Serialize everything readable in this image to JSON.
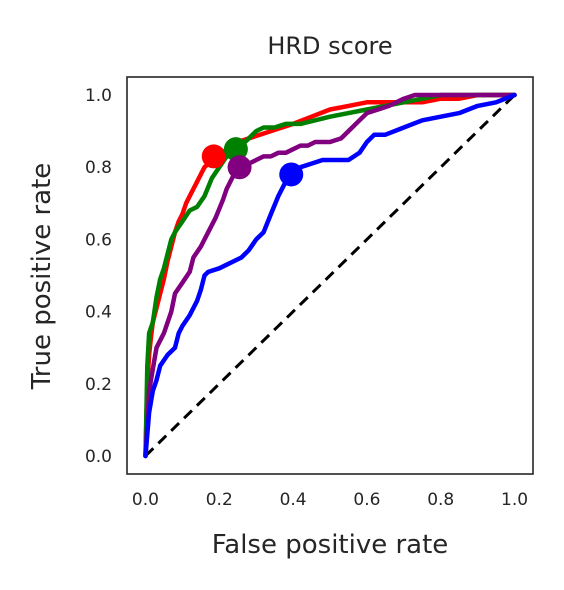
{
  "chart_data": {
    "type": "line",
    "title": "HRD score",
    "xlabel": "False positive rate",
    "ylabel": "True positive rate",
    "xlim": [
      -0.05,
      1.05
    ],
    "ylim": [
      -0.05,
      1.05
    ],
    "xticks": [
      "0.0",
      "0.2",
      "0.4",
      "0.6",
      "0.8",
      "1.0"
    ],
    "yticks": [
      "0.0",
      "0.2",
      "0.4",
      "0.6",
      "0.8",
      "1.0"
    ],
    "grid": false,
    "legend": false,
    "diagonal": {
      "x": [
        0,
        1
      ],
      "y": [
        0,
        1
      ],
      "color": "#000000",
      "style": "dashed"
    },
    "series": [
      {
        "color": "#ff0000",
        "x": [
          0,
          0.005,
          0.01,
          0.015,
          0.02,
          0.03,
          0.04,
          0.05,
          0.06,
          0.07,
          0.08,
          0.09,
          0.1,
          0.11,
          0.12,
          0.13,
          0.14,
          0.15,
          0.16,
          0.17,
          0.18,
          0.19,
          0.21,
          0.23,
          0.25,
          0.28,
          0.31,
          0.34,
          0.37,
          0.4,
          0.45,
          0.5,
          0.55,
          0.6,
          0.65,
          0.7,
          0.75,
          0.8,
          0.85,
          0.9,
          0.95,
          1.0
        ],
        "y": [
          0,
          0.2,
          0.28,
          0.33,
          0.37,
          0.41,
          0.45,
          0.49,
          0.54,
          0.58,
          0.62,
          0.65,
          0.67,
          0.7,
          0.72,
          0.74,
          0.76,
          0.78,
          0.8,
          0.81,
          0.82,
          0.83,
          0.84,
          0.86,
          0.87,
          0.88,
          0.89,
          0.9,
          0.91,
          0.92,
          0.94,
          0.96,
          0.97,
          0.98,
          0.98,
          0.98,
          0.98,
          0.99,
          0.99,
          1.0,
          1.0,
          1.0
        ]
      },
      {
        "color": "#008000",
        "x": [
          0,
          0.005,
          0.01,
          0.02,
          0.03,
          0.04,
          0.05,
          0.06,
          0.07,
          0.08,
          0.1,
          0.12,
          0.14,
          0.16,
          0.18,
          0.2,
          0.22,
          0.24,
          0.26,
          0.28,
          0.3,
          0.32,
          0.35,
          0.38,
          0.42,
          0.46,
          0.5,
          0.55,
          0.6,
          0.65,
          0.7,
          0.75,
          0.8,
          0.85,
          0.9,
          0.95,
          1.0
        ],
        "y": [
          0,
          0.25,
          0.34,
          0.37,
          0.44,
          0.49,
          0.52,
          0.56,
          0.6,
          0.62,
          0.65,
          0.68,
          0.69,
          0.72,
          0.77,
          0.8,
          0.83,
          0.85,
          0.86,
          0.88,
          0.9,
          0.91,
          0.91,
          0.92,
          0.92,
          0.93,
          0.94,
          0.95,
          0.96,
          0.97,
          0.98,
          0.99,
          1.0,
          1.0,
          1.0,
          1.0,
          1.0
        ]
      },
      {
        "color": "#800080",
        "x": [
          0,
          0.01,
          0.02,
          0.03,
          0.05,
          0.07,
          0.08,
          0.1,
          0.12,
          0.13,
          0.15,
          0.17,
          0.19,
          0.21,
          0.22,
          0.24,
          0.26,
          0.28,
          0.3,
          0.32,
          0.34,
          0.36,
          0.38,
          0.4,
          0.42,
          0.44,
          0.46,
          0.5,
          0.53,
          0.55,
          0.58,
          0.6,
          0.63,
          0.66,
          0.7,
          0.73,
          0.76,
          0.8,
          0.85,
          0.9,
          0.95,
          1.0
        ],
        "y": [
          0,
          0.18,
          0.24,
          0.3,
          0.34,
          0.4,
          0.45,
          0.48,
          0.51,
          0.55,
          0.58,
          0.62,
          0.66,
          0.71,
          0.74,
          0.78,
          0.8,
          0.81,
          0.82,
          0.83,
          0.83,
          0.84,
          0.84,
          0.85,
          0.86,
          0.86,
          0.87,
          0.87,
          0.88,
          0.9,
          0.93,
          0.95,
          0.96,
          0.97,
          0.99,
          1.0,
          1.0,
          1.0,
          1.0,
          1.0,
          1.0,
          1.0
        ]
      },
      {
        "color": "#0000ff",
        "x": [
          0,
          0.01,
          0.02,
          0.03,
          0.04,
          0.06,
          0.08,
          0.09,
          0.1,
          0.12,
          0.13,
          0.14,
          0.15,
          0.16,
          0.17,
          0.2,
          0.22,
          0.24,
          0.26,
          0.28,
          0.3,
          0.32,
          0.34,
          0.36,
          0.38,
          0.4,
          0.42,
          0.45,
          0.48,
          0.5,
          0.55,
          0.58,
          0.6,
          0.62,
          0.65,
          0.7,
          0.75,
          0.8,
          0.85,
          0.9,
          0.95,
          1.0
        ],
        "y": [
          0,
          0.12,
          0.18,
          0.21,
          0.25,
          0.28,
          0.3,
          0.34,
          0.36,
          0.39,
          0.41,
          0.43,
          0.46,
          0.5,
          0.51,
          0.52,
          0.53,
          0.54,
          0.55,
          0.57,
          0.6,
          0.62,
          0.67,
          0.72,
          0.76,
          0.78,
          0.8,
          0.81,
          0.82,
          0.82,
          0.82,
          0.84,
          0.87,
          0.89,
          0.89,
          0.91,
          0.93,
          0.94,
          0.95,
          0.97,
          0.98,
          1.0
        ]
      }
    ],
    "points": [
      {
        "color": "#ff0000",
        "x": 0.185,
        "y": 0.83
      },
      {
        "color": "#008000",
        "x": 0.245,
        "y": 0.85
      },
      {
        "color": "#800080",
        "x": 0.255,
        "y": 0.8
      },
      {
        "color": "#0000ff",
        "x": 0.395,
        "y": 0.78
      }
    ]
  }
}
